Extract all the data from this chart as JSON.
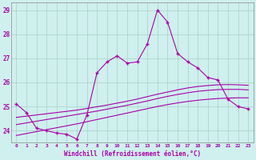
{
  "xlabel": "Windchill (Refroidissement éolien,°C)",
  "background_color": "#cff0ee",
  "grid_color": "#aad8cc",
  "line_color": "#aa00aa",
  "x_hours": [
    0,
    1,
    2,
    3,
    4,
    5,
    6,
    7,
    8,
    9,
    10,
    11,
    12,
    13,
    14,
    15,
    16,
    17,
    18,
    19,
    20,
    21,
    22,
    23
  ],
  "windchill_line": [
    25.1,
    24.75,
    24.1,
    24.0,
    23.9,
    23.85,
    23.65,
    24.65,
    26.4,
    26.85,
    27.1,
    26.8,
    26.85,
    27.6,
    29.0,
    28.5,
    27.2,
    26.85,
    26.6,
    26.2,
    26.1,
    25.3,
    25.0,
    24.9
  ],
  "smooth_line1": [
    24.55,
    24.6,
    24.65,
    24.7,
    24.75,
    24.8,
    24.85,
    24.92,
    24.99,
    25.06,
    25.14,
    25.22,
    25.31,
    25.41,
    25.51,
    25.6,
    25.69,
    25.77,
    25.83,
    25.87,
    25.9,
    25.91,
    25.9,
    25.88
  ],
  "smooth_line2": [
    24.25,
    24.32,
    24.39,
    24.46,
    24.53,
    24.6,
    24.67,
    24.74,
    24.81,
    24.89,
    24.97,
    25.05,
    25.14,
    25.23,
    25.33,
    25.42,
    25.5,
    25.57,
    25.63,
    25.67,
    25.7,
    25.71,
    25.71,
    25.69
  ],
  "smooth_line3": [
    23.8,
    23.88,
    23.96,
    24.04,
    24.12,
    24.2,
    24.28,
    24.37,
    24.46,
    24.55,
    24.64,
    24.73,
    24.82,
    24.91,
    25.0,
    25.08,
    25.15,
    25.21,
    25.26,
    25.3,
    25.33,
    25.35,
    25.36,
    25.36
  ],
  "ylim": [
    23.5,
    29.3
  ],
  "yticks": [
    24,
    25,
    26,
    27,
    28,
    29
  ],
  "xlim": [
    -0.5,
    23.5
  ]
}
